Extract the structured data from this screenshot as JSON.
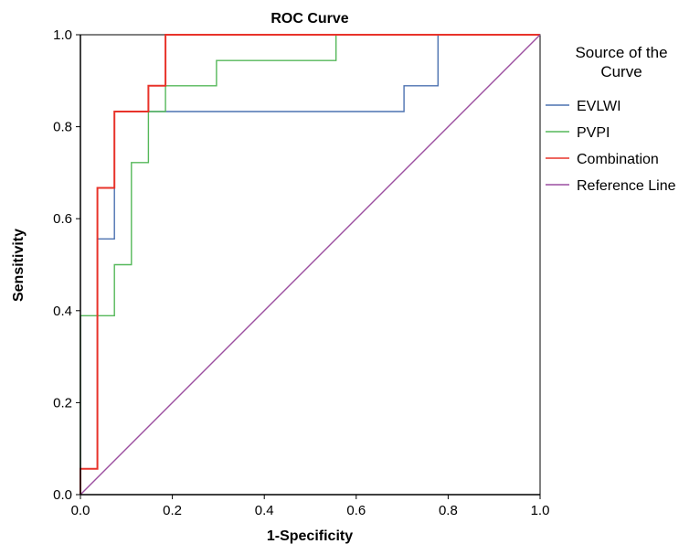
{
  "chart_data": {
    "type": "line",
    "title": "ROC Curve",
    "xlabel": "1-Specificity",
    "ylabel": "Sensitivity",
    "xlim": [
      0.0,
      1.0
    ],
    "ylim": [
      0.0,
      1.0
    ],
    "x_ticks": [
      "0.0",
      "0.2",
      "0.4",
      "0.6",
      "0.8",
      "1.0"
    ],
    "y_ticks": [
      "0.0",
      "0.2",
      "0.4",
      "0.6",
      "0.8",
      "1.0"
    ],
    "grid": false,
    "legend": {
      "title_lines": [
        "Source of the",
        "Curve"
      ],
      "placement": "right"
    },
    "series": [
      {
        "name": "EVLWI",
        "color": "#4c72b0",
        "points": [
          [
            0,
            0
          ],
          [
            0,
            0.056
          ],
          [
            0.037,
            0.056
          ],
          [
            0.037,
            0.556
          ],
          [
            0.074,
            0.556
          ],
          [
            0.074,
            0.833
          ],
          [
            0.704,
            0.833
          ],
          [
            0.704,
            0.889
          ],
          [
            0.778,
            0.889
          ],
          [
            0.778,
            1.0
          ],
          [
            1.0,
            1.0
          ]
        ]
      },
      {
        "name": "PVPI",
        "color": "#55b85a",
        "points": [
          [
            0,
            0
          ],
          [
            0,
            0.389
          ],
          [
            0.074,
            0.389
          ],
          [
            0.074,
            0.5
          ],
          [
            0.111,
            0.5
          ],
          [
            0.111,
            0.722
          ],
          [
            0.148,
            0.722
          ],
          [
            0.148,
            0.833
          ],
          [
            0.185,
            0.833
          ],
          [
            0.185,
            0.889
          ],
          [
            0.296,
            0.889
          ],
          [
            0.296,
            0.944
          ],
          [
            0.556,
            0.944
          ],
          [
            0.556,
            1.0
          ],
          [
            1.0,
            1.0
          ]
        ]
      },
      {
        "name": "Combination",
        "color": "#e8332a",
        "points": [
          [
            0,
            0
          ],
          [
            0,
            0.056
          ],
          [
            0.037,
            0.056
          ],
          [
            0.037,
            0.667
          ],
          [
            0.074,
            0.667
          ],
          [
            0.074,
            0.833
          ],
          [
            0.148,
            0.833
          ],
          [
            0.148,
            0.889
          ],
          [
            0.185,
            0.889
          ],
          [
            0.185,
            1.0
          ],
          [
            1.0,
            1.0
          ]
        ]
      },
      {
        "name": "Reference Line",
        "color": "#9b4fa0",
        "points": [
          [
            0,
            0
          ],
          [
            1.0,
            1.0
          ]
        ]
      }
    ]
  }
}
